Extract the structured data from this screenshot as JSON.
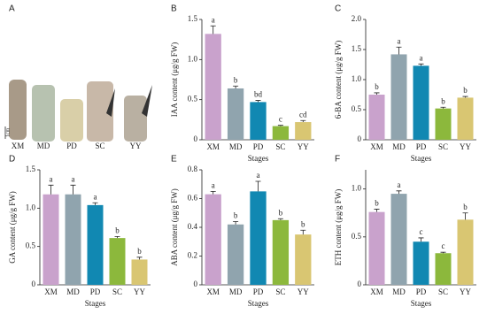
{
  "photo_panel": {
    "panel_label": "A",
    "scale_label": "1cm",
    "samples": [
      "XM",
      "MD",
      "PD",
      "SC",
      "YY"
    ]
  },
  "chart_data": [
    {
      "type": "bar",
      "panel_label": "B",
      "y_label": "IAA content (μg/g FW)",
      "x_label": "Stages",
      "categories": [
        "XM",
        "MD",
        "PD",
        "SC",
        "YY"
      ],
      "values": [
        1.32,
        0.64,
        0.47,
        0.17,
        0.22
      ],
      "errors": [
        0.1,
        0.03,
        0.02,
        0.01,
        0.02
      ],
      "significance_letters": [
        "a",
        "b",
        "bd",
        "c",
        "cd"
      ],
      "colors": [
        "#c9a2cc",
        "#90a4ae",
        "#1188b2",
        "#8cb83c",
        "#d9c672"
      ],
      "ylim": [
        0,
        1.5
      ],
      "yticks": [
        0,
        0.5,
        {
          "value": 1,
          "label": "1.0"
        },
        1.5
      ]
    },
    {
      "type": "bar",
      "panel_label": "C",
      "y_label": "6-BA content (μg/g FW)",
      "x_label": "Stages",
      "categories": [
        "XM",
        "MD",
        "PD",
        "SC",
        "YY"
      ],
      "values": [
        0.75,
        1.42,
        1.23,
        0.52,
        0.7
      ],
      "errors": [
        0.03,
        0.12,
        0.03,
        0.02,
        0.02
      ],
      "significance_letters": [
        "b",
        "a",
        "a",
        "b",
        "b"
      ],
      "colors": [
        "#c9a2cc",
        "#90a4ae",
        "#1188b2",
        "#8cb83c",
        "#d9c672"
      ],
      "ylim": [
        0,
        2
      ],
      "yticks": [
        0,
        0.5,
        {
          "value": 1,
          "label": "1.0"
        },
        1.5,
        {
          "value": 2,
          "label": "2.0"
        }
      ]
    },
    {
      "type": "bar",
      "panel_label": "D",
      "y_label": "GA content (μg/g FW)",
      "x_label": "Stages",
      "categories": [
        "XM",
        "MD",
        "PD",
        "SC",
        "YY"
      ],
      "values": [
        1.18,
        1.18,
        1.04,
        0.61,
        0.33
      ],
      "errors": [
        0.12,
        0.12,
        0.03,
        0.02,
        0.03
      ],
      "significance_letters": [
        "a",
        "a",
        "a",
        "b",
        "b"
      ],
      "colors": [
        "#c9a2cc",
        "#90a4ae",
        "#1188b2",
        "#8cb83c",
        "#d9c672"
      ],
      "ylim": [
        0,
        1.5
      ],
      "yticks": [
        0,
        0.5,
        {
          "value": 1,
          "label": "1.0"
        },
        1.5
      ]
    },
    {
      "type": "bar",
      "panel_label": "E",
      "y_label": "ABA content (μg/g FW)",
      "x_label": "Stages",
      "categories": [
        "XM",
        "MD",
        "PD",
        "SC",
        "YY"
      ],
      "values": [
        0.63,
        0.42,
        0.65,
        0.45,
        0.35
      ],
      "errors": [
        0.02,
        0.02,
        0.07,
        0.01,
        0.03
      ],
      "significance_letters": [
        "a",
        "b",
        "a",
        "b",
        "b"
      ],
      "colors": [
        "#c9a2cc",
        "#90a4ae",
        "#1188b2",
        "#8cb83c",
        "#d9c672"
      ],
      "ylim": [
        0,
        0.8
      ],
      "yticks": [
        0,
        0.2,
        0.4,
        0.6,
        0.8
      ]
    },
    {
      "type": "bar",
      "panel_label": "F",
      "y_label": "ETH content (μg/g FW)",
      "x_label": "Stages",
      "categories": [
        "XM",
        "MD",
        "PD",
        "SC",
        "YY"
      ],
      "values": [
        0.76,
        0.95,
        0.45,
        0.33,
        0.68
      ],
      "errors": [
        0.03,
        0.03,
        0.04,
        0.01,
        0.07
      ],
      "significance_letters": [
        "b",
        "a",
        "c",
        "c",
        "b"
      ],
      "colors": [
        "#c9a2cc",
        "#90a4ae",
        "#1188b2",
        "#8cb83c",
        "#d9c672"
      ],
      "ylim": [
        0,
        1.2
      ],
      "yticks": [
        0,
        0.5,
        {
          "value": 1,
          "label": "1.0"
        }
      ]
    }
  ]
}
